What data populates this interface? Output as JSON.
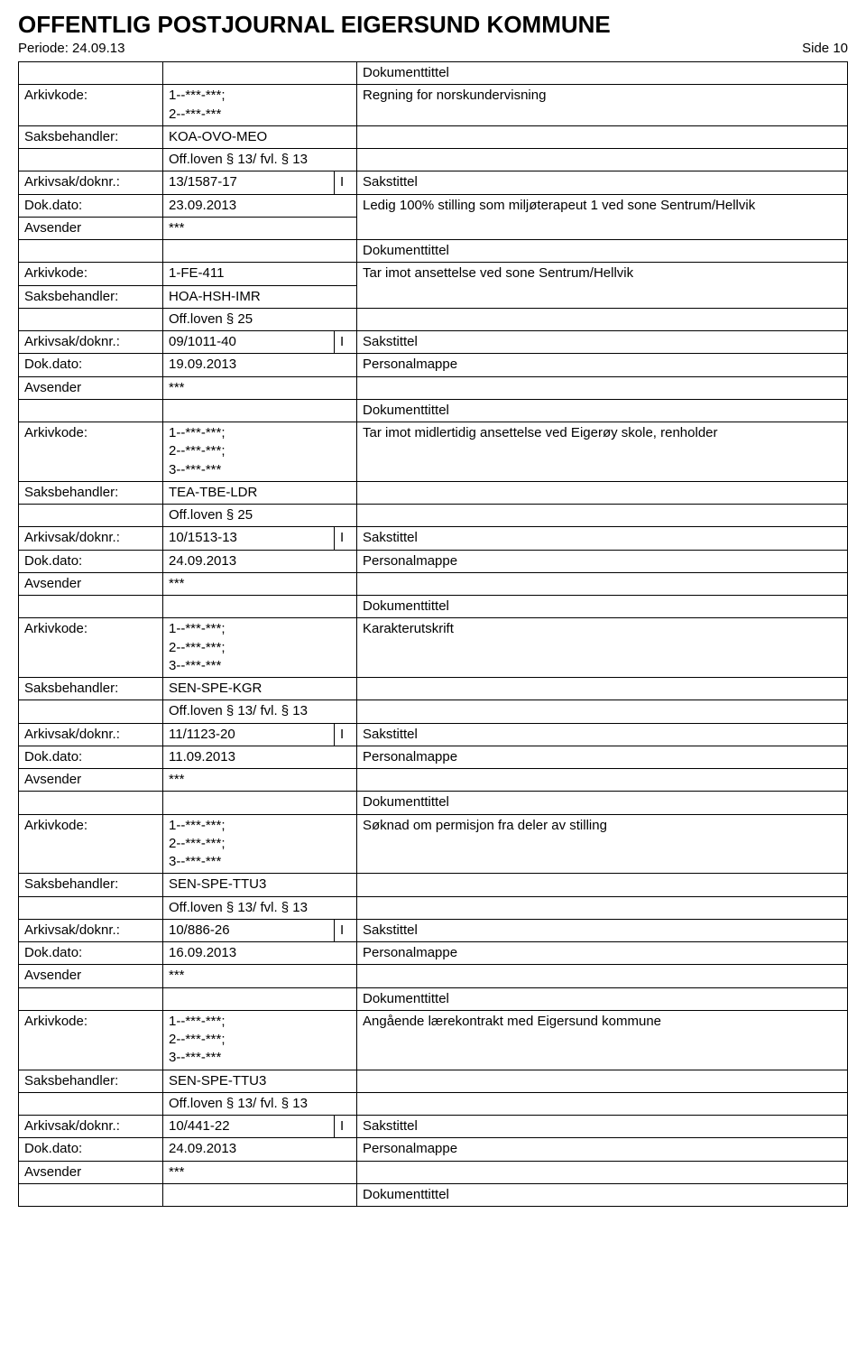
{
  "header": {
    "title": "OFFENTLIG POSTJOURNAL EIGERSUND KOMMUNE",
    "periode_label": "Periode: 24.09.13",
    "side_label": "Side 10"
  },
  "rows": [
    {
      "c": [
        {
          "t": "",
          "cls": "label-col"
        },
        {
          "t": "",
          "cls": "val1-col",
          "span": 2
        },
        {
          "t": "Dokumenttittel",
          "cls": "right-col"
        }
      ]
    },
    {
      "c": [
        {
          "t": "Arkivkode:",
          "cls": "label-col"
        },
        {
          "t": "1--***-***;\n2--***-***",
          "cls": "val1-col",
          "span": 2
        },
        {
          "t": "Regning for norskundervisning",
          "cls": "right-col"
        }
      ]
    },
    {
      "c": [
        {
          "t": "Saksbehandler:",
          "cls": "label-col"
        },
        {
          "t": "KOA-OVO-MEO",
          "cls": "val1-col",
          "span": 2
        },
        {
          "t": "",
          "cls": "right-col"
        }
      ]
    },
    {
      "c": [
        {
          "t": "",
          "cls": "label-col"
        },
        {
          "t": "Off.loven § 13/ fvl. § 13",
          "cls": "val1-col",
          "span": 2
        },
        {
          "t": "",
          "cls": "right-col"
        }
      ]
    },
    {
      "c": [
        {
          "t": "Arkivsak/doknr.:",
          "cls": "label-col"
        },
        {
          "t": "13/1587-17",
          "cls": "val1-col"
        },
        {
          "t": "I",
          "cls": "io-col"
        },
        {
          "t": "Sakstittel",
          "cls": "right-col"
        }
      ]
    },
    {
      "c": [
        {
          "t": "Dok.dato:",
          "cls": "label-col"
        },
        {
          "t": "23.09.2013",
          "cls": "val1-col",
          "span": 2
        },
        {
          "t": "Ledig 100% stilling som miljøterapeut 1 ved sone Sentrum/Hellvik",
          "cls": "right-col",
          "rowspan": 2
        }
      ]
    },
    {
      "c": [
        {
          "t": "Avsender",
          "cls": "label-col"
        },
        {
          "t": "***",
          "cls": "val1-col",
          "span": 2
        }
      ]
    },
    {
      "c": [
        {
          "t": "",
          "cls": "label-col"
        },
        {
          "t": "",
          "cls": "val1-col",
          "span": 2
        },
        {
          "t": "Dokumenttittel",
          "cls": "right-col"
        }
      ]
    },
    {
      "c": [
        {
          "t": "Arkivkode:",
          "cls": "label-col"
        },
        {
          "t": "1-FE-411",
          "cls": "val1-col",
          "span": 2
        },
        {
          "t": "Tar imot ansettelse ved sone Sentrum/Hellvik",
          "cls": "right-col",
          "rowspan": 2
        }
      ]
    },
    {
      "c": [
        {
          "t": "Saksbehandler:",
          "cls": "label-col"
        },
        {
          "t": "HOA-HSH-IMR",
          "cls": "val1-col",
          "span": 2
        }
      ]
    },
    {
      "c": [
        {
          "t": "",
          "cls": "label-col"
        },
        {
          "t": "Off.loven § 25",
          "cls": "val1-col",
          "span": 2
        },
        {
          "t": "",
          "cls": "right-col"
        }
      ]
    },
    {
      "c": [
        {
          "t": "Arkivsak/doknr.:",
          "cls": "label-col"
        },
        {
          "t": "09/1011-40",
          "cls": "val1-col"
        },
        {
          "t": "I",
          "cls": "io-col"
        },
        {
          "t": "Sakstittel",
          "cls": "right-col"
        }
      ]
    },
    {
      "c": [
        {
          "t": "Dok.dato:",
          "cls": "label-col"
        },
        {
          "t": "19.09.2013",
          "cls": "val1-col",
          "span": 2
        },
        {
          "t": "Personalmappe",
          "cls": "right-col"
        }
      ]
    },
    {
      "c": [
        {
          "t": "Avsender",
          "cls": "label-col"
        },
        {
          "t": "***",
          "cls": "val1-col",
          "span": 2
        },
        {
          "t": "",
          "cls": "right-col"
        }
      ]
    },
    {
      "c": [
        {
          "t": "",
          "cls": "label-col"
        },
        {
          "t": "",
          "cls": "val1-col",
          "span": 2
        },
        {
          "t": "Dokumenttittel",
          "cls": "right-col"
        }
      ]
    },
    {
      "c": [
        {
          "t": "Arkivkode:",
          "cls": "label-col"
        },
        {
          "t": "1--***-***;\n2--***-***;\n3--***-***",
          "cls": "val1-col",
          "span": 2
        },
        {
          "t": "Tar imot midlertidig ansettelse ved Eigerøy skole, renholder",
          "cls": "right-col"
        }
      ]
    },
    {
      "c": [
        {
          "t": "Saksbehandler:",
          "cls": "label-col"
        },
        {
          "t": "TEA-TBE-LDR",
          "cls": "val1-col",
          "span": 2
        },
        {
          "t": "",
          "cls": "right-col"
        }
      ]
    },
    {
      "c": [
        {
          "t": "",
          "cls": "label-col"
        },
        {
          "t": "Off.loven § 25",
          "cls": "val1-col",
          "span": 2
        },
        {
          "t": "",
          "cls": "right-col"
        }
      ]
    },
    {
      "c": [
        {
          "t": "Arkivsak/doknr.:",
          "cls": "label-col"
        },
        {
          "t": "10/1513-13",
          "cls": "val1-col"
        },
        {
          "t": "I",
          "cls": "io-col"
        },
        {
          "t": "Sakstittel",
          "cls": "right-col"
        }
      ]
    },
    {
      "c": [
        {
          "t": "Dok.dato:",
          "cls": "label-col"
        },
        {
          "t": "24.09.2013",
          "cls": "val1-col",
          "span": 2
        },
        {
          "t": "Personalmappe",
          "cls": "right-col"
        }
      ]
    },
    {
      "c": [
        {
          "t": "Avsender",
          "cls": "label-col"
        },
        {
          "t": "***",
          "cls": "val1-col",
          "span": 2
        },
        {
          "t": "",
          "cls": "right-col"
        }
      ]
    },
    {
      "c": [
        {
          "t": "",
          "cls": "label-col"
        },
        {
          "t": "",
          "cls": "val1-col",
          "span": 2
        },
        {
          "t": "Dokumenttittel",
          "cls": "right-col"
        }
      ]
    },
    {
      "c": [
        {
          "t": "Arkivkode:",
          "cls": "label-col"
        },
        {
          "t": "1--***-***;\n2--***-***;\n3--***-***",
          "cls": "val1-col",
          "span": 2
        },
        {
          "t": "Karakterutskrift",
          "cls": "right-col"
        }
      ]
    },
    {
      "c": [
        {
          "t": "Saksbehandler:",
          "cls": "label-col"
        },
        {
          "t": "SEN-SPE-KGR",
          "cls": "val1-col",
          "span": 2
        },
        {
          "t": "",
          "cls": "right-col"
        }
      ]
    },
    {
      "c": [
        {
          "t": "",
          "cls": "label-col"
        },
        {
          "t": "Off.loven § 13/ fvl. § 13",
          "cls": "val1-col",
          "span": 2
        },
        {
          "t": "",
          "cls": "right-col"
        }
      ]
    },
    {
      "c": [
        {
          "t": "Arkivsak/doknr.:",
          "cls": "label-col"
        },
        {
          "t": "11/1123-20",
          "cls": "val1-col"
        },
        {
          "t": "I",
          "cls": "io-col"
        },
        {
          "t": "Sakstittel",
          "cls": "right-col"
        }
      ]
    },
    {
      "c": [
        {
          "t": "Dok.dato:",
          "cls": "label-col"
        },
        {
          "t": "11.09.2013",
          "cls": "val1-col",
          "span": 2
        },
        {
          "t": "Personalmappe",
          "cls": "right-col"
        }
      ]
    },
    {
      "c": [
        {
          "t": "Avsender",
          "cls": "label-col"
        },
        {
          "t": "***",
          "cls": "val1-col",
          "span": 2
        },
        {
          "t": "",
          "cls": "right-col"
        }
      ]
    },
    {
      "c": [
        {
          "t": "",
          "cls": "label-col"
        },
        {
          "t": "",
          "cls": "val1-col",
          "span": 2
        },
        {
          "t": "Dokumenttittel",
          "cls": "right-col"
        }
      ]
    },
    {
      "c": [
        {
          "t": "Arkivkode:",
          "cls": "label-col"
        },
        {
          "t": "1--***-***;\n2--***-***;\n3--***-***",
          "cls": "val1-col",
          "span": 2
        },
        {
          "t": "Søknad om permisjon fra deler av stilling",
          "cls": "right-col"
        }
      ]
    },
    {
      "c": [
        {
          "t": "Saksbehandler:",
          "cls": "label-col"
        },
        {
          "t": "SEN-SPE-TTU3",
          "cls": "val1-col",
          "span": 2
        },
        {
          "t": "",
          "cls": "right-col"
        }
      ]
    },
    {
      "c": [
        {
          "t": "",
          "cls": "label-col"
        },
        {
          "t": "Off.loven § 13/ fvl. § 13",
          "cls": "val1-col",
          "span": 2
        },
        {
          "t": "",
          "cls": "right-col"
        }
      ]
    },
    {
      "c": [
        {
          "t": "Arkivsak/doknr.:",
          "cls": "label-col"
        },
        {
          "t": "10/886-26",
          "cls": "val1-col"
        },
        {
          "t": "I",
          "cls": "io-col"
        },
        {
          "t": "Sakstittel",
          "cls": "right-col"
        }
      ]
    },
    {
      "c": [
        {
          "t": "Dok.dato:",
          "cls": "label-col"
        },
        {
          "t": "16.09.2013",
          "cls": "val1-col",
          "span": 2
        },
        {
          "t": "Personalmappe",
          "cls": "right-col"
        }
      ]
    },
    {
      "c": [
        {
          "t": "Avsender",
          "cls": "label-col"
        },
        {
          "t": "***",
          "cls": "val1-col",
          "span": 2
        },
        {
          "t": "",
          "cls": "right-col"
        }
      ]
    },
    {
      "c": [
        {
          "t": "",
          "cls": "label-col"
        },
        {
          "t": "",
          "cls": "val1-col",
          "span": 2
        },
        {
          "t": "Dokumenttittel",
          "cls": "right-col"
        }
      ]
    },
    {
      "c": [
        {
          "t": "Arkivkode:",
          "cls": "label-col"
        },
        {
          "t": "1--***-***;\n2--***-***;\n3--***-***",
          "cls": "val1-col",
          "span": 2
        },
        {
          "t": "Angående lærekontrakt med Eigersund kommune",
          "cls": "right-col"
        }
      ]
    },
    {
      "c": [
        {
          "t": "Saksbehandler:",
          "cls": "label-col"
        },
        {
          "t": "SEN-SPE-TTU3",
          "cls": "val1-col",
          "span": 2
        },
        {
          "t": "",
          "cls": "right-col"
        }
      ]
    },
    {
      "c": [
        {
          "t": "",
          "cls": "label-col"
        },
        {
          "t": "Off.loven § 13/ fvl. § 13",
          "cls": "val1-col",
          "span": 2
        },
        {
          "t": "",
          "cls": "right-col"
        }
      ]
    },
    {
      "c": [
        {
          "t": "Arkivsak/doknr.:",
          "cls": "label-col"
        },
        {
          "t": "10/441-22",
          "cls": "val1-col"
        },
        {
          "t": "I",
          "cls": "io-col"
        },
        {
          "t": "Sakstittel",
          "cls": "right-col"
        }
      ]
    },
    {
      "c": [
        {
          "t": "Dok.dato:",
          "cls": "label-col"
        },
        {
          "t": "24.09.2013",
          "cls": "val1-col",
          "span": 2
        },
        {
          "t": "Personalmappe",
          "cls": "right-col"
        }
      ]
    },
    {
      "c": [
        {
          "t": "Avsender",
          "cls": "label-col"
        },
        {
          "t": "***",
          "cls": "val1-col",
          "span": 2
        },
        {
          "t": "",
          "cls": "right-col"
        }
      ]
    },
    {
      "c": [
        {
          "t": "",
          "cls": "label-col"
        },
        {
          "t": "",
          "cls": "val1-col",
          "span": 2
        },
        {
          "t": "Dokumenttittel",
          "cls": "right-col"
        }
      ]
    }
  ]
}
